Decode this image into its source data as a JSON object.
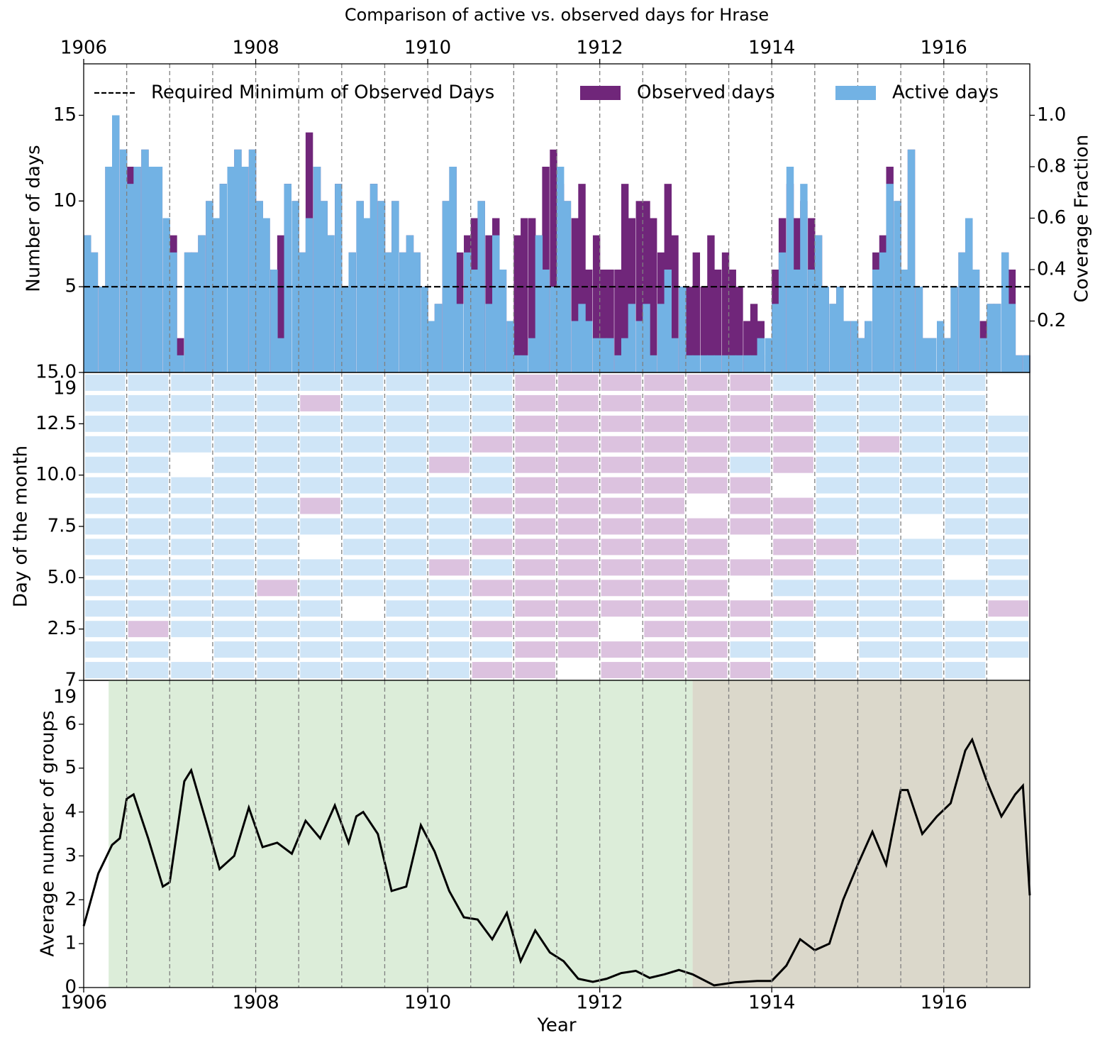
{
  "chart_data": [
    {
      "type": "bar",
      "title": "Comparison of active vs. observed days for Hrase",
      "ylabel": "Number of days",
      "y2label": "Coverage Fraction",
      "xlim": [
        1906,
        1917
      ],
      "xticks": [
        1906,
        1908,
        1910,
        1912,
        1914,
        1916
      ],
      "ylim": [
        0,
        18
      ],
      "yticks": [
        5,
        10,
        15
      ],
      "y2lim": [
        0,
        1.2
      ],
      "y2ticks": [
        0.2,
        0.4,
        0.6,
        0.8,
        {
          "value": 1.0,
          "label": "1.0"
        }
      ],
      "vlines": [
        1906.5,
        1907,
        1907.5,
        1908,
        1908.5,
        1909,
        1909.5,
        1910,
        1910.5,
        1911,
        1911.5,
        1912,
        1912.5,
        1913,
        1913.5,
        1914,
        1914.5,
        1915,
        1915.5,
        1916,
        1916.5
      ],
      "hlines": [
        {
          "name": "Required Minimum of Observed Days",
          "value": 5,
          "color": "#000000"
        }
      ],
      "x": [
        1906.0,
        1906.08,
        1906.17,
        1906.25,
        1906.33,
        1906.42,
        1906.5,
        1906.58,
        1906.67,
        1906.75,
        1906.83,
        1906.92,
        1907.0,
        1907.08,
        1907.17,
        1907.25,
        1907.33,
        1907.42,
        1907.5,
        1907.58,
        1907.67,
        1907.75,
        1907.83,
        1907.92,
        1908.0,
        1908.08,
        1908.17,
        1908.25,
        1908.33,
        1908.42,
        1908.5,
        1908.58,
        1908.67,
        1908.75,
        1908.83,
        1908.92,
        1909.0,
        1909.08,
        1909.17,
        1909.25,
        1909.33,
        1909.42,
        1909.5,
        1909.58,
        1909.67,
        1909.75,
        1909.83,
        1909.92,
        1910.0,
        1910.08,
        1910.17,
        1910.25,
        1910.33,
        1910.42,
        1910.5,
        1910.58,
        1910.67,
        1910.75,
        1910.83,
        1910.92,
        1911.0,
        1911.08,
        1911.17,
        1911.25,
        1911.33,
        1911.42,
        1911.5,
        1911.58,
        1911.67,
        1911.75,
        1911.83,
        1911.92,
        1912.0,
        1912.08,
        1912.17,
        1912.25,
        1912.33,
        1912.42,
        1912.5,
        1912.58,
        1912.67,
        1912.75,
        1912.83,
        1912.92,
        1913.0,
        1913.08,
        1913.17,
        1913.25,
        1913.33,
        1913.42,
        1913.5,
        1913.58,
        1913.67,
        1913.75,
        1913.83,
        1913.92,
        1914.0,
        1914.08,
        1914.17,
        1914.25,
        1914.33,
        1914.42,
        1914.5,
        1914.58,
        1914.67,
        1914.75,
        1914.83,
        1914.92,
        1915.0,
        1915.08,
        1915.17,
        1915.25,
        1915.33,
        1915.42,
        1915.5,
        1915.58,
        1915.67,
        1915.75,
        1915.83,
        1915.92,
        1916.0,
        1916.08,
        1916.17,
        1916.25,
        1916.33,
        1916.42,
        1916.5,
        1916.58,
        1916.67,
        1916.75,
        1916.83,
        1916.92
      ],
      "series": [
        {
          "name": "Observed days",
          "color": "#70267a",
          "values": [
            8,
            7,
            5,
            12,
            15,
            13,
            12,
            12,
            13,
            12,
            12,
            9,
            8,
            2,
            7,
            7,
            8,
            10,
            9,
            11,
            12,
            13,
            12,
            13,
            10,
            9,
            6,
            8,
            11,
            10,
            7,
            14,
            12,
            10,
            8,
            11,
            5,
            7,
            10,
            9,
            11,
            10,
            7,
            10,
            7,
            8,
            7,
            5,
            3,
            4,
            10,
            12,
            7,
            8,
            9,
            10,
            8,
            9,
            6,
            3,
            8,
            9,
            9,
            8,
            12,
            13,
            11,
            10,
            9,
            11,
            6,
            8,
            6,
            6,
            6,
            11,
            9,
            10,
            10,
            9,
            7,
            11,
            8,
            5,
            5,
            7,
            5,
            8,
            6,
            7,
            6,
            5,
            3,
            4,
            3,
            1,
            6,
            9,
            11,
            9,
            10,
            9,
            8,
            5,
            4,
            5,
            3,
            3,
            2,
            3,
            7,
            8,
            12,
            10,
            6,
            13,
            5,
            2,
            2,
            3,
            2,
            5,
            7,
            9,
            6,
            3,
            4,
            4,
            7,
            6,
            1,
            1
          ]
        },
        {
          "name": "Active days",
          "color": "#72b2e4",
          "values": [
            8,
            7,
            5,
            12,
            15,
            13,
            11,
            12,
            13,
            12,
            12,
            9,
            7,
            1,
            7,
            7,
            8,
            10,
            9,
            11,
            12,
            13,
            12,
            13,
            10,
            9,
            6,
            2,
            11,
            10,
            7,
            9,
            12,
            10,
            8,
            11,
            5,
            7,
            10,
            9,
            11,
            10,
            7,
            10,
            7,
            8,
            7,
            5,
            3,
            4,
            10,
            12,
            4,
            7,
            6,
            10,
            4,
            8,
            6,
            3,
            1,
            1,
            2,
            8,
            6,
            5,
            12,
            10,
            3,
            4,
            3,
            2,
            2,
            2,
            1,
            2,
            4,
            3,
            4,
            1,
            4,
            6,
            2,
            5,
            1,
            1,
            1,
            1,
            1,
            1,
            1,
            1,
            1,
            1,
            2,
            2,
            4,
            7,
            12,
            6,
            11,
            6,
            8,
            5,
            4,
            5,
            3,
            3,
            2,
            3,
            6,
            7,
            11,
            10,
            6,
            13,
            5,
            2,
            2,
            3,
            2,
            5,
            7,
            9,
            6,
            2,
            4,
            4,
            7,
            4,
            1,
            1
          ]
        }
      ]
    },
    {
      "type": "heatmap",
      "ylabel": "Day of the month",
      "overlay_label": "19",
      "xlim": [
        1906,
        1917
      ],
      "ylim": [
        0,
        15
      ],
      "yticks": [
        2.5,
        {
          "value": 5,
          "label": "5.0"
        },
        7.5,
        {
          "value": 10,
          "label": "10.0"
        },
        12.5,
        {
          "value": 15,
          "label": "15.0"
        }
      ],
      "vlines": [
        1906.5,
        1907,
        1907.5,
        1908,
        1908.5,
        1909,
        1909.5,
        1910,
        1910.5,
        1911,
        1911.5,
        1912,
        1912.5,
        1913,
        1913.5,
        1914,
        1914.5,
        1915,
        1915.5,
        1916,
        1916.5
      ],
      "cell_colors": [
        "#ffffff",
        "#cfe5f7",
        "#dcc2df"
      ],
      "x": [
        1906,
        1906.5,
        1907,
        1907.5,
        1908,
        1908.5,
        1909,
        1909.5,
        1910,
        1910.5,
        1911,
        1911.5,
        1912,
        1912.5,
        1913,
        1913.5,
        1914,
        1914.5,
        1915,
        1915.5,
        1916,
        1916.5
      ],
      "y": [
        0,
        1,
        2,
        3,
        4,
        5,
        6,
        7,
        8,
        9,
        10,
        11,
        12,
        13,
        14
      ],
      "z": [
        [
          1,
          1,
          1,
          1,
          1,
          1,
          1,
          1,
          1,
          2,
          2,
          0,
          2,
          2,
          2,
          2,
          1,
          1,
          1,
          1,
          1,
          0
        ],
        [
          1,
          1,
          0,
          1,
          1,
          1,
          1,
          1,
          1,
          1,
          2,
          2,
          2,
          2,
          2,
          1,
          1,
          0,
          1,
          1,
          1,
          1
        ],
        [
          1,
          2,
          1,
          1,
          1,
          1,
          1,
          1,
          1,
          2,
          2,
          2,
          0,
          2,
          2,
          2,
          1,
          1,
          1,
          1,
          1,
          1
        ],
        [
          1,
          1,
          1,
          1,
          1,
          1,
          0,
          1,
          1,
          1,
          2,
          2,
          2,
          2,
          2,
          2,
          2,
          1,
          1,
          1,
          0,
          2
        ],
        [
          1,
          1,
          1,
          1,
          2,
          1,
          1,
          1,
          1,
          2,
          2,
          2,
          2,
          2,
          2,
          0,
          1,
          1,
          1,
          1,
          1,
          1
        ],
        [
          1,
          1,
          1,
          1,
          1,
          1,
          1,
          1,
          2,
          1,
          2,
          2,
          2,
          2,
          2,
          2,
          2,
          1,
          1,
          1,
          0,
          1
        ],
        [
          1,
          1,
          1,
          1,
          1,
          0,
          1,
          1,
          1,
          2,
          2,
          2,
          2,
          2,
          2,
          0,
          2,
          2,
          1,
          1,
          1,
          1
        ],
        [
          1,
          1,
          1,
          1,
          1,
          1,
          1,
          1,
          1,
          1,
          2,
          2,
          2,
          2,
          2,
          2,
          2,
          1,
          1,
          0,
          1,
          1
        ],
        [
          1,
          1,
          1,
          1,
          1,
          2,
          1,
          1,
          1,
          2,
          2,
          2,
          2,
          2,
          0,
          2,
          2,
          1,
          1,
          1,
          1,
          1
        ],
        [
          1,
          1,
          1,
          1,
          1,
          1,
          1,
          1,
          1,
          1,
          2,
          2,
          2,
          2,
          2,
          2,
          0,
          1,
          1,
          1,
          1,
          1
        ],
        [
          1,
          1,
          0,
          1,
          1,
          1,
          1,
          1,
          2,
          1,
          2,
          2,
          2,
          2,
          2,
          1,
          2,
          1,
          1,
          1,
          1,
          1
        ],
        [
          1,
          1,
          1,
          1,
          1,
          1,
          1,
          1,
          1,
          2,
          2,
          2,
          2,
          2,
          2,
          2,
          2,
          1,
          2,
          1,
          1,
          1
        ],
        [
          1,
          1,
          1,
          1,
          1,
          1,
          1,
          1,
          1,
          1,
          2,
          2,
          2,
          2,
          2,
          2,
          2,
          1,
          1,
          1,
          1,
          1
        ],
        [
          1,
          1,
          1,
          1,
          1,
          2,
          1,
          1,
          1,
          1,
          2,
          2,
          2,
          2,
          2,
          2,
          2,
          1,
          1,
          1,
          1,
          0
        ],
        [
          1,
          1,
          1,
          1,
          1,
          1,
          1,
          1,
          1,
          1,
          2,
          2,
          2,
          2,
          2,
          2,
          1,
          1,
          1,
          1,
          1,
          0
        ]
      ]
    },
    {
      "type": "line",
      "ylabel": "Average number of groups",
      "xlabel": "Year",
      "overlay_label": "19",
      "xlim": [
        1906,
        1917
      ],
      "xticks": [
        1906,
        1908,
        1910,
        1912,
        1914,
        1916
      ],
      "ylim": [
        0,
        7
      ],
      "yticks": [
        0,
        1,
        2,
        3,
        4,
        5,
        6,
        7
      ],
      "vlines": [
        1906.5,
        1907,
        1907.5,
        1908,
        1908.5,
        1909,
        1909.5,
        1910,
        1910.5,
        1911,
        1911.5,
        1912,
        1912.5,
        1913,
        1913.5,
        1914,
        1914.5,
        1915,
        1915.5,
        1916,
        1916.5
      ],
      "spans": [
        {
          "start": 1906.29,
          "end": 1913.08,
          "color": "#dcedd9"
        },
        {
          "start": 1913.08,
          "end": 1917,
          "color": "#dbd8cb"
        }
      ],
      "color": "#000000",
      "x": [
        1906.0,
        1906.17,
        1906.33,
        1906.42,
        1906.5,
        1906.58,
        1906.75,
        1906.92,
        1907.0,
        1907.17,
        1907.25,
        1907.42,
        1907.58,
        1907.75,
        1907.92,
        1908.08,
        1908.25,
        1908.42,
        1908.58,
        1908.75,
        1908.92,
        1909.08,
        1909.17,
        1909.25,
        1909.42,
        1909.58,
        1909.75,
        1909.92,
        1910.08,
        1910.25,
        1910.42,
        1910.58,
        1910.75,
        1910.92,
        1911.08,
        1911.25,
        1911.42,
        1911.58,
        1911.75,
        1911.92,
        1912.08,
        1912.25,
        1912.42,
        1912.58,
        1912.75,
        1912.92,
        1913.08,
        1913.33,
        1913.58,
        1913.83,
        1914.0,
        1914.17,
        1914.33,
        1914.5,
        1914.67,
        1914.83,
        1915.0,
        1915.17,
        1915.33,
        1915.5,
        1915.58,
        1915.75,
        1915.92,
        1916.08,
        1916.25,
        1916.33,
        1916.5,
        1916.67,
        1916.83,
        1916.92,
        1917.0
      ],
      "values": [
        1.4,
        2.6,
        3.25,
        3.4,
        4.3,
        4.4,
        3.4,
        2.3,
        2.4,
        4.7,
        4.95,
        3.8,
        2.7,
        3.0,
        4.1,
        3.2,
        3.3,
        3.05,
        3.8,
        3.4,
        4.15,
        3.3,
        3.9,
        4.0,
        3.5,
        2.2,
        2.3,
        3.7,
        3.1,
        2.2,
        1.6,
        1.55,
        1.1,
        1.7,
        0.6,
        1.3,
        0.8,
        0.6,
        0.2,
        0.13,
        0.2,
        0.33,
        0.38,
        0.22,
        0.3,
        0.4,
        0.3,
        0.05,
        0.12,
        0.15,
        0.15,
        0.5,
        1.1,
        0.85,
        1.0,
        2.0,
        2.8,
        3.55,
        2.8,
        4.5,
        4.5,
        3.5,
        3.9,
        4.2,
        5.4,
        5.65,
        4.7,
        3.9,
        4.4,
        4.6,
        2.1
      ]
    }
  ]
}
